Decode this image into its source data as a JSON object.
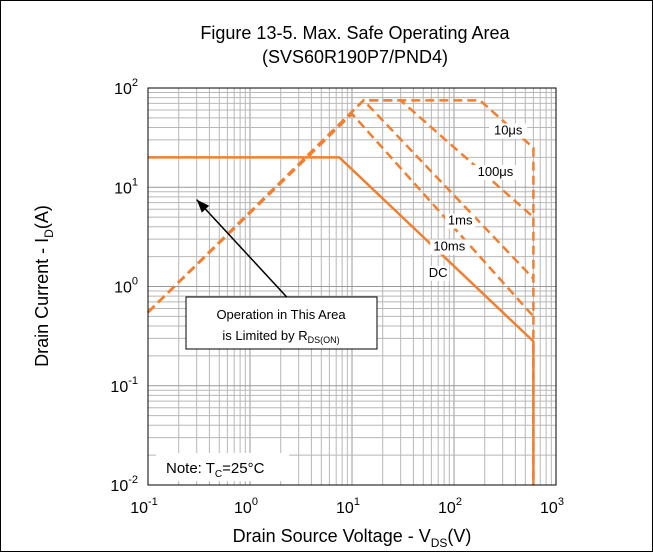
{
  "chart_data": {
    "type": "line",
    "title": "Figure 13-5. Max. Safe Operating Area",
    "subtitle": "(SVS60R190P7/PND4)",
    "xlabel": {
      "main": "Drain Source Voltage - V",
      "sub": "DS",
      "tail": "(V)"
    },
    "ylabel": {
      "main": "Drain Current - I",
      "sub": "D",
      "tail": "(A)"
    },
    "x_scale": "log",
    "y_scale": "log",
    "xlim": [
      0.1,
      1000
    ],
    "ylim": [
      0.01,
      100
    ],
    "grid": true,
    "x_ticks": [
      {
        "value": 0.1,
        "base": "10",
        "exp": "-1"
      },
      {
        "value": 1,
        "base": "10",
        "exp": "0"
      },
      {
        "value": 10,
        "base": "10",
        "exp": "1"
      },
      {
        "value": 100,
        "base": "10",
        "exp": "2"
      },
      {
        "value": 1000,
        "base": "10",
        "exp": "3"
      }
    ],
    "y_ticks": [
      {
        "value": 100,
        "base": "10",
        "exp": "2"
      },
      {
        "value": 10,
        "base": "10",
        "exp": "1"
      },
      {
        "value": 1,
        "base": "10",
        "exp": "0"
      },
      {
        "value": 0.1,
        "base": "10",
        "exp": "-1"
      },
      {
        "value": 0.01,
        "base": "10",
        "exp": "-2"
      }
    ],
    "color": "#f08030",
    "series": [
      {
        "name": "10μs",
        "style": "dashed",
        "points": [
          [
            0.1,
            0.55
          ],
          [
            13,
            75
          ],
          [
            180,
            75
          ],
          [
            600,
            25
          ],
          [
            600,
            0.01
          ]
        ]
      },
      {
        "name": "100μs",
        "style": "dashed",
        "points": [
          [
            0.1,
            0.55
          ],
          [
            13,
            75
          ],
          [
            30,
            75
          ],
          [
            600,
            5
          ]
        ]
      },
      {
        "name": "1ms",
        "style": "dashed",
        "points": [
          [
            0.1,
            0.55
          ],
          [
            13,
            75
          ],
          [
            600,
            1.2
          ]
        ]
      },
      {
        "name": "10ms",
        "style": "dashed",
        "points": [
          [
            0.1,
            0.55
          ],
          [
            10,
            55
          ],
          [
            600,
            0.5
          ]
        ]
      },
      {
        "name": "DC",
        "style": "solid",
        "points": [
          [
            0.1,
            20
          ],
          [
            7.5,
            20
          ],
          [
            600,
            0.28
          ],
          [
            600,
            0.01
          ]
        ]
      }
    ],
    "series_labels": [
      {
        "text": "10μs",
        "at": [
          340,
          34
        ]
      },
      {
        "text": "100μs",
        "at": [
          255,
          13
        ]
      },
      {
        "text": "1ms",
        "at": [
          115,
          4.2
        ]
      },
      {
        "text": "10ms",
        "at": [
          90,
          2.3
        ]
      },
      {
        "text": "DC",
        "at": [
          70,
          1.25
        ]
      }
    ],
    "annotation": {
      "line1": "Operation in This Area",
      "line2_main": "is Limited by R",
      "line2_sub": "DS(ON)",
      "arrow_from": [
        4.2,
        0.4
      ],
      "arrow_to": [
        0.3,
        7.5
      ]
    },
    "note": {
      "main": "Note: T",
      "sub": "C",
      "tail": "=25°C"
    }
  }
}
